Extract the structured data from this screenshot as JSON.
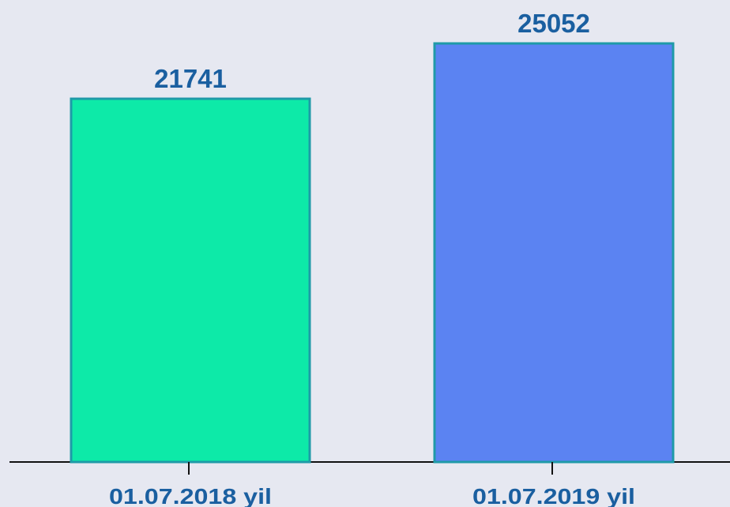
{
  "chart_data": {
    "type": "bar",
    "categories": [
      "01.07.2018 yil",
      "01.07.2019 yil"
    ],
    "values": [
      21741,
      25052
    ],
    "colors": [
      "#0deaa8",
      "#5b83f2"
    ],
    "edge_color": "#1f9aa8",
    "label_color": "#1a5fa0"
  }
}
